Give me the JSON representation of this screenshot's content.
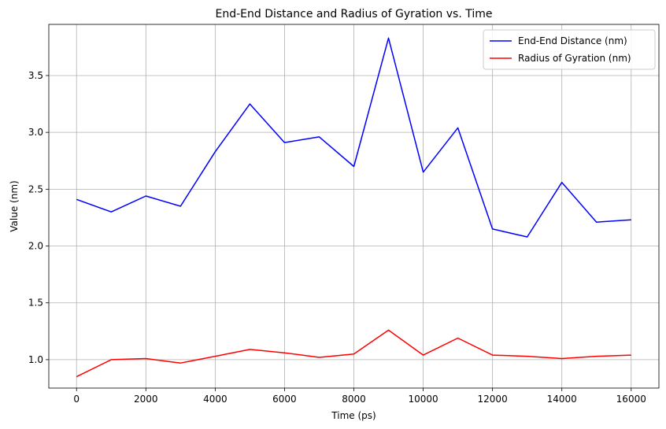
{
  "chart_data": {
    "type": "line",
    "title": "End-End Distance and Radius of Gyration vs. Time",
    "xlabel": "Time (ps)",
    "ylabel": "Value (nm)",
    "x": [
      0,
      1000,
      2000,
      3000,
      4000,
      5000,
      6000,
      7000,
      8000,
      9000,
      10000,
      11000,
      12000,
      13000,
      14000,
      15000,
      16000
    ],
    "xlim": [
      -800,
      16800
    ],
    "ylim": [
      0.75,
      3.95
    ],
    "xticks": [
      0,
      2000,
      4000,
      6000,
      8000,
      10000,
      12000,
      14000,
      16000
    ],
    "yticks": [
      1.0,
      1.5,
      2.0,
      2.5,
      3.0,
      3.5
    ],
    "xtick_labels": [
      "0",
      "2000",
      "4000",
      "6000",
      "8000",
      "10000",
      "12000",
      "14000",
      "16000"
    ],
    "ytick_labels": [
      "1.0",
      "1.5",
      "2.0",
      "2.5",
      "3.0",
      "3.5"
    ],
    "grid": true,
    "legend": "top-right",
    "series": [
      {
        "name": "End-End Distance (nm)",
        "color": "#0000ff",
        "values": [
          2.41,
          2.3,
          2.44,
          2.35,
          2.83,
          3.25,
          2.91,
          2.96,
          2.7,
          3.83,
          2.65,
          3.04,
          2.15,
          2.08,
          2.56,
          2.21,
          2.23
        ]
      },
      {
        "name": "Radius of Gyration (nm)",
        "color": "#ff0000",
        "values": [
          0.85,
          1.0,
          1.01,
          0.97,
          1.03,
          1.09,
          1.06,
          1.02,
          1.05,
          1.26,
          1.04,
          1.19,
          1.04,
          1.03,
          1.01,
          1.03,
          1.04
        ]
      }
    ]
  }
}
